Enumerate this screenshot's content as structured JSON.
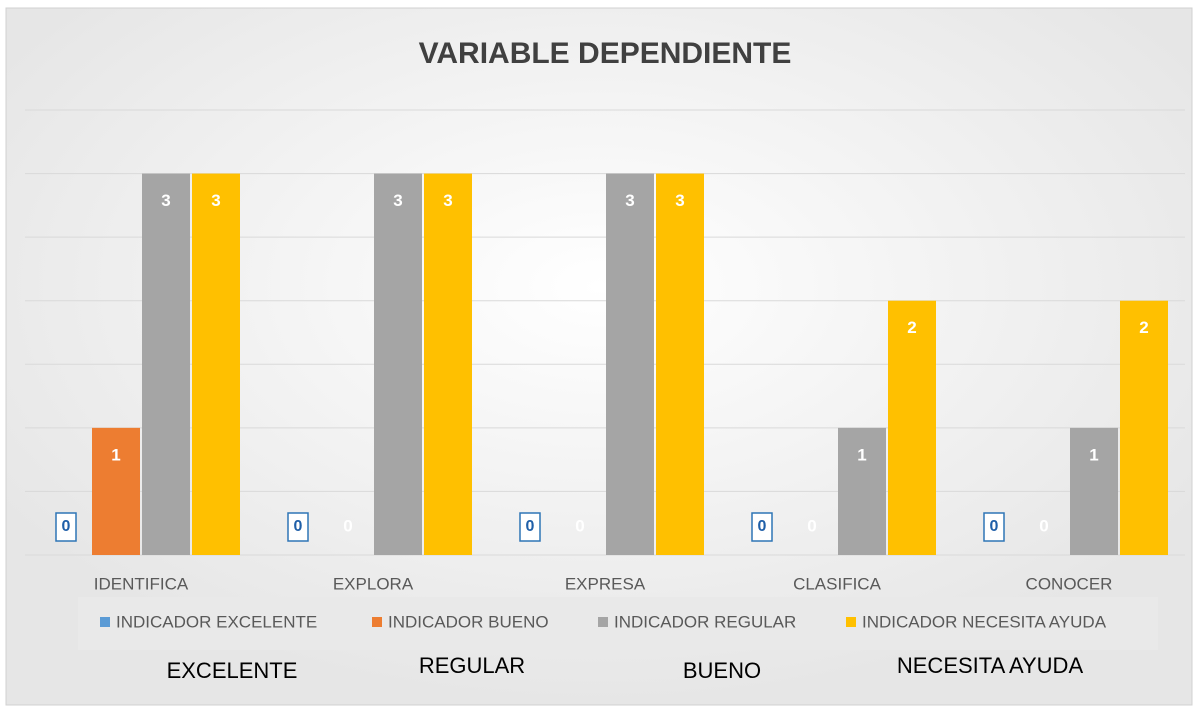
{
  "chart_data": {
    "type": "bar",
    "title": "VARIABLE DEPENDIENTE",
    "categories": [
      "IDENTIFICA",
      "EXPLORA",
      "EXPRESA",
      "CLASIFICA",
      "CONOCER"
    ],
    "series": [
      {
        "name": "INDICADOR EXCELENTE",
        "color": "#5b9bd5",
        "values": [
          0,
          0,
          0,
          0,
          0
        ]
      },
      {
        "name": "INDICADOR BUENO",
        "color": "#ed7d31",
        "values": [
          1,
          0,
          0,
          0,
          0
        ]
      },
      {
        "name": "INDICADOR REGULAR",
        "color": "#a5a5a5",
        "values": [
          3,
          3,
          3,
          1,
          1
        ]
      },
      {
        "name": "INDICADOR NECESITA AYUDA",
        "color": "#ffc000",
        "values": [
          3,
          3,
          3,
          2,
          2
        ]
      }
    ],
    "ylim": [
      0,
      3.5
    ],
    "yticks": [
      0,
      0.5,
      1,
      1.5,
      2,
      2.5,
      3,
      3.5
    ],
    "grid": true,
    "annotations": [
      "EXCELENTE",
      "REGULAR",
      "BUENO",
      "NECESITA AYUDA"
    ]
  }
}
